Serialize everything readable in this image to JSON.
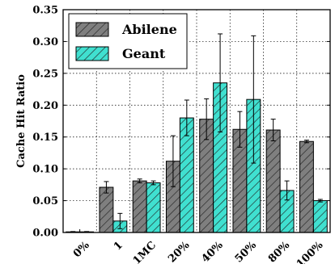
{
  "chart_data": {
    "type": "bar",
    "title": "",
    "xlabel": "",
    "ylabel": "Cache Hit Ratio",
    "ylim": [
      0.0,
      0.35
    ],
    "yticks": [
      "0.00",
      "0.05",
      "0.10",
      "0.15",
      "0.20",
      "0.25",
      "0.30",
      "0.35"
    ],
    "grid": true,
    "legend_position": "top-left",
    "categories": [
      "0%",
      "1",
      "1MC",
      "20%",
      "40%",
      "50%",
      "80%",
      "100%"
    ],
    "series": [
      {
        "name": "Abilene",
        "color": "#7f7f7f",
        "hatch": "diagonal",
        "values": [
          0.001,
          0.071,
          0.081,
          0.112,
          0.178,
          0.162,
          0.161,
          0.143
        ],
        "errors": [
          0.0005,
          0.009,
          0.003,
          0.04,
          0.032,
          0.028,
          0.017,
          0.002
        ]
      },
      {
        "name": "Geant",
        "color": "#40e0d0",
        "hatch": "diagonal",
        "values": [
          0.001,
          0.018,
          0.078,
          0.18,
          0.235,
          0.209,
          0.066,
          0.05
        ],
        "errors": [
          0.0005,
          0.012,
          0.003,
          0.028,
          0.077,
          0.1,
          0.015,
          0.002
        ]
      }
    ]
  }
}
